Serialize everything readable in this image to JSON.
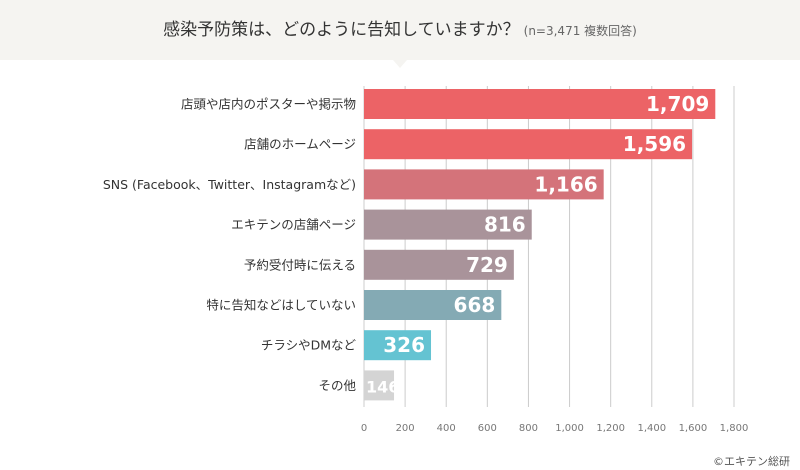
{
  "chart_data": {
    "type": "bar",
    "orientation": "horizontal",
    "title": "感染予防策は、どのように告知していますか？",
    "subtitle": "(n=3,471 複数回答)",
    "categories": [
      "店頭や店内のポスターや掲示物",
      "店舗のホームページ",
      "SNS (Facebook、Twitter、Instagramなど)",
      "エキテンの店舗ページ",
      "予約受付時に伝える",
      "特に告知などはしていない",
      "チラシやDMなど",
      "その他"
    ],
    "values": [
      1709,
      1596,
      1166,
      816,
      729,
      668,
      326,
      146
    ],
    "value_labels": [
      "1,709",
      "1,596",
      "1,166",
      "816",
      "729",
      "668",
      "326",
      "146"
    ],
    "colors": [
      "#ec6366",
      "#ec6366",
      "#d4737a",
      "#a9939a",
      "#a9939a",
      "#84aab4",
      "#64c3d2",
      "#d4d4d4"
    ],
    "xlim": [
      0,
      1800
    ],
    "xticks": [
      0,
      200,
      400,
      600,
      800,
      1000,
      1200,
      1400,
      1600,
      1800
    ],
    "xtick_labels": [
      "0",
      "200",
      "400",
      "600",
      "800",
      "1,000",
      "1,200",
      "1,400",
      "1,600",
      "1,800"
    ],
    "grid": true,
    "xlabel": "",
    "ylabel": ""
  },
  "credit": "©エキテン総研"
}
